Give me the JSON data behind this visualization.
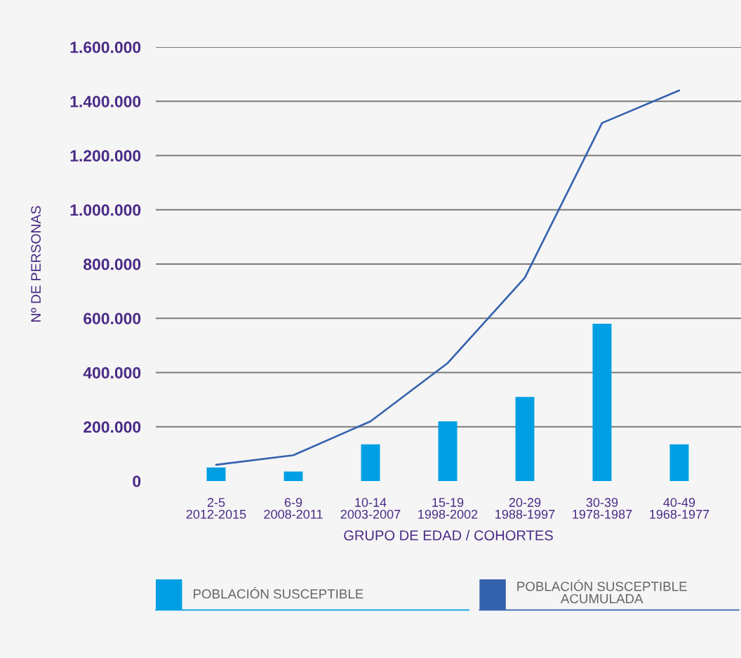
{
  "chart_data": {
    "type": "bar",
    "xlabel": "GRUPO DE EDAD / COHORTES",
    "ylabel": "Nº DE PERSONAS",
    "categories": [
      "2-5\n2012-2015",
      "6-9\n2008-2011",
      "10-14\n2003-2007",
      "15-19\n1998-2002",
      "20-29\n1988-1997",
      "30-39\n1978-1987",
      "40-49\n1968-1977"
    ],
    "series": [
      {
        "name": "POBLACIÓN SUSCEPTIBLE",
        "color": "#009fe3",
        "values": [
          50000,
          35000,
          135000,
          220000,
          310000,
          580000,
          135000
        ]
      },
      {
        "name": "POBLACIÓN SUSCEPTIBLE\nACUMULADA",
        "type": "line",
        "color": "#3562ae",
        "values": [
          60000,
          95000,
          220000,
          435000,
          750000,
          1320000,
          1440000
        ]
      }
    ],
    "ylim": [
      0,
      1600000
    ],
    "yticks": [
      0,
      {
        "value": 200000,
        "label": "200.000"
      },
      {
        "value": 400000,
        "label": "400.000"
      },
      {
        "value": 600000,
        "label": "600.000"
      },
      {
        "value": 800000,
        "label": "800.000"
      },
      {
        "value": 1000000,
        "label": "1.000.000"
      },
      {
        "value": 1200000,
        "label": "1.200.000"
      },
      {
        "value": 1400000,
        "label": "1.400.000"
      },
      {
        "value": 1600000,
        "label": "1.600.000"
      }
    ],
    "grid": "y",
    "legend": "bottom"
  }
}
